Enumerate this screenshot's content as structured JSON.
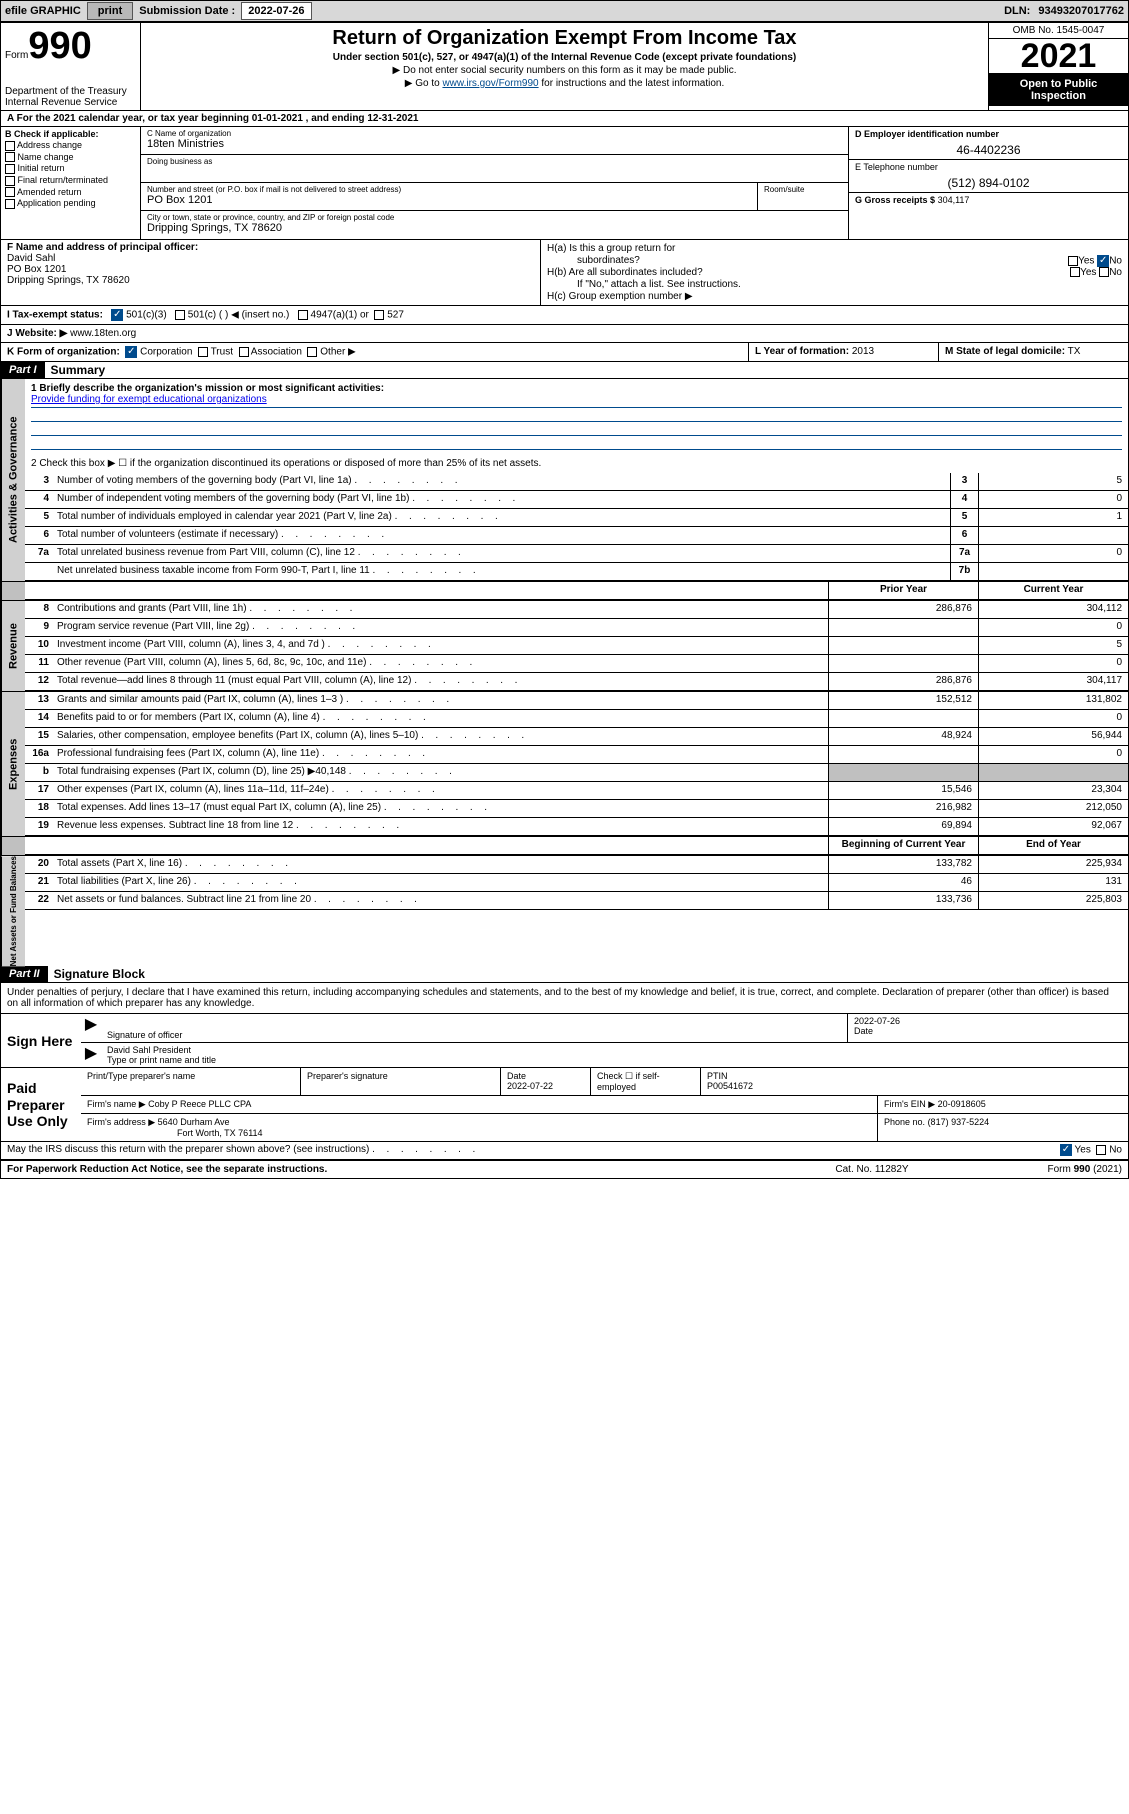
{
  "topbar": {
    "efile": "efile GRAPHIC",
    "print": "print",
    "sub_lbl": "Submission Date :",
    "sub_date": "2022-07-26",
    "dln_lbl": "DLN:",
    "dln": "93493207017762"
  },
  "header": {
    "form_small": "Form",
    "form_big": "990",
    "dept": "Department of the Treasury",
    "irs": "Internal Revenue Service",
    "title": "Return of Organization Exempt From Income Tax",
    "sub1": "Under section 501(c), 527, or 4947(a)(1) of the Internal Revenue Code (except private foundations)",
    "sub2": "▶ Do not enter social security numbers on this form as it may be made public.",
    "sub3_a": "▶ Go to ",
    "sub3_link": "www.irs.gov/Form990",
    "sub3_b": " for instructions and the latest information.",
    "omb": "OMB No. 1545-0047",
    "year": "2021",
    "open": "Open to Public Inspection"
  },
  "row_a": "A For the 2021 calendar year, or tax year beginning 01-01-2021   , and ending 12-31-2021",
  "col_b": {
    "hdr": "B Check if applicable:",
    "items": [
      "Address change",
      "Name change",
      "Initial return",
      "Final return/terminated",
      "Amended return",
      "Application pending"
    ]
  },
  "col_c": {
    "name_lbl": "C Name of organization",
    "name": "18ten Ministries",
    "dba_lbl": "Doing business as",
    "dba": "",
    "addr_lbl": "Number and street (or P.O. box if mail is not delivered to street address)",
    "room_lbl": "Room/suite",
    "addr": "PO Box 1201",
    "city_lbl": "City or town, state or province, country, and ZIP or foreign postal code",
    "city": "Dripping Springs, TX  78620"
  },
  "col_d": {
    "ein_lbl": "D Employer identification number",
    "ein": "46-4402236",
    "tel_lbl": "E Telephone number",
    "tel": "(512) 894-0102",
    "gross_lbl": "G Gross receipts $",
    "gross": "304,117"
  },
  "row_f": {
    "lbl": "F Name and address of principal officer:",
    "name": "David Sahl",
    "addr1": "PO Box 1201",
    "addr2": "Dripping Springs, TX  78620"
  },
  "row_h": {
    "a_lbl": "H(a)  Is this a group return for",
    "a_sub": "subordinates?",
    "b_lbl": "H(b)  Are all subordinates included?",
    "b_note": "If \"No,\" attach a list. See instructions.",
    "c_lbl": "H(c)  Group exemption number ▶",
    "yes": "Yes",
    "no": "No"
  },
  "row_i": {
    "lbl": "I   Tax-exempt status:",
    "o1": "501(c)(3)",
    "o2": "501(c) (  ) ◀ (insert no.)",
    "o3": "4947(a)(1) or",
    "o4": "527"
  },
  "row_j": {
    "lbl": "J   Website: ▶",
    "val": " www.18ten.org"
  },
  "row_k": {
    "lbl": "K Form of organization:",
    "opts": [
      "Corporation",
      "Trust",
      "Association",
      "Other ▶"
    ],
    "l_lbl": "L Year of formation:",
    "l_val": "2013",
    "m_lbl": "M State of legal domicile:",
    "m_val": "TX"
  },
  "part1": {
    "hdr": "Part I",
    "title": "Summary",
    "q1_lbl": "1   Briefly describe the organization's mission or most significant activities:",
    "q1_val": "Provide funding for exempt educational organizations",
    "q2": "2   Check this box ▶ ☐  if the organization discontinued its operations or disposed of more than 25% of its net assets.",
    "rows_ag": [
      {
        "n": "3",
        "d": "Number of voting members of the governing body (Part VI, line 1a)",
        "b": "3",
        "v": "5"
      },
      {
        "n": "4",
        "d": "Number of independent voting members of the governing body (Part VI, line 1b)",
        "b": "4",
        "v": "0"
      },
      {
        "n": "5",
        "d": "Total number of individuals employed in calendar year 2021 (Part V, line 2a)",
        "b": "5",
        "v": "1"
      },
      {
        "n": "6",
        "d": "Total number of volunteers (estimate if necessary)",
        "b": "6",
        "v": ""
      },
      {
        "n": "7a",
        "d": "Total unrelated business revenue from Part VIII, column (C), line 12",
        "b": "7a",
        "v": "0"
      },
      {
        "n": "",
        "d": "Net unrelated business taxable income from Form 990-T, Part I, line 11",
        "b": "7b",
        "v": ""
      }
    ],
    "col_prior": "Prior Year",
    "col_curr": "Current Year",
    "rows_rev": [
      {
        "n": "8",
        "d": "Contributions and grants (Part VIII, line 1h)",
        "p": "286,876",
        "c": "304,112"
      },
      {
        "n": "9",
        "d": "Program service revenue (Part VIII, line 2g)",
        "p": "",
        "c": "0"
      },
      {
        "n": "10",
        "d": "Investment income (Part VIII, column (A), lines 3, 4, and 7d )",
        "p": "",
        "c": "5"
      },
      {
        "n": "11",
        "d": "Other revenue (Part VIII, column (A), lines 5, 6d, 8c, 9c, 10c, and 11e)",
        "p": "",
        "c": "0"
      },
      {
        "n": "12",
        "d": "Total revenue—add lines 8 through 11 (must equal Part VIII, column (A), line 12)",
        "p": "286,876",
        "c": "304,117"
      }
    ],
    "rows_exp": [
      {
        "n": "13",
        "d": "Grants and similar amounts paid (Part IX, column (A), lines 1–3 )",
        "p": "152,512",
        "c": "131,802"
      },
      {
        "n": "14",
        "d": "Benefits paid to or for members (Part IX, column (A), line 4)",
        "p": "",
        "c": "0"
      },
      {
        "n": "15",
        "d": "Salaries, other compensation, employee benefits (Part IX, column (A), lines 5–10)",
        "p": "48,924",
        "c": "56,944"
      },
      {
        "n": "16a",
        "d": "Professional fundraising fees (Part IX, column (A), line 11e)",
        "p": "",
        "c": "0"
      },
      {
        "n": "b",
        "d": "Total fundraising expenses (Part IX, column (D), line 25) ▶40,148",
        "p": "GREY",
        "c": "GREY"
      },
      {
        "n": "17",
        "d": "Other expenses (Part IX, column (A), lines 11a–11d, 11f–24e)",
        "p": "15,546",
        "c": "23,304"
      },
      {
        "n": "18",
        "d": "Total expenses. Add lines 13–17 (must equal Part IX, column (A), line 25)",
        "p": "216,982",
        "c": "212,050"
      },
      {
        "n": "19",
        "d": "Revenue less expenses. Subtract line 18 from line 12",
        "p": "69,894",
        "c": "92,067"
      }
    ],
    "col_beg": "Beginning of Current Year",
    "col_end": "End of Year",
    "rows_net": [
      {
        "n": "20",
        "d": "Total assets (Part X, line 16)",
        "p": "133,782",
        "c": "225,934"
      },
      {
        "n": "21",
        "d": "Total liabilities (Part X, line 26)",
        "p": "46",
        "c": "131"
      },
      {
        "n": "22",
        "d": "Net assets or fund balances. Subtract line 21 from line 20",
        "p": "133,736",
        "c": "225,803"
      }
    ]
  },
  "part2": {
    "hdr": "Part II",
    "title": "Signature Block",
    "intro": "Under penalties of perjury, I declare that I have examined this return, including accompanying schedules and statements, and to the best of my knowledge and belief, it is true, correct, and complete. Declaration of preparer (other than officer) is based on all information of which preparer has any knowledge.",
    "sign_here": "Sign Here",
    "sig_officer": "Signature of officer",
    "sig_date_lbl": "Date",
    "sig_date": "2022-07-26",
    "sig_name": "David Sahl  President",
    "sig_name_lbl": "Type or print name and title",
    "paid": "Paid Preparer Use Only",
    "p_name_lbl": "Print/Type preparer's name",
    "p_sig_lbl": "Preparer's signature",
    "p_date_lbl": "Date",
    "p_date": "2022-07-22",
    "p_check": "Check ☐ if self-employed",
    "ptin_lbl": "PTIN",
    "ptin": "P00541672",
    "firm_name_lbl": "Firm's name    ▶",
    "firm_name": "Coby P Reece PLLC CPA",
    "firm_ein_lbl": "Firm's EIN ▶",
    "firm_ein": "20-0918605",
    "firm_addr_lbl": "Firm's address ▶",
    "firm_addr1": "5640 Durham Ave",
    "firm_addr2": "Fort Worth, TX  76114",
    "phone_lbl": "Phone no.",
    "phone": "(817) 937-5224",
    "may_irs": "May the IRS discuss this return with the preparer shown above? (see instructions)",
    "paperwork": "For Paperwork Reduction Act Notice, see the separate instructions.",
    "cat": "Cat. No. 11282Y",
    "formno": "Form 990 (2021)"
  },
  "labels": {
    "side_ag": "Activities & Governance",
    "side_rev": "Revenue",
    "side_exp": "Expenses",
    "side_net": "Net Assets or Fund Balances"
  }
}
